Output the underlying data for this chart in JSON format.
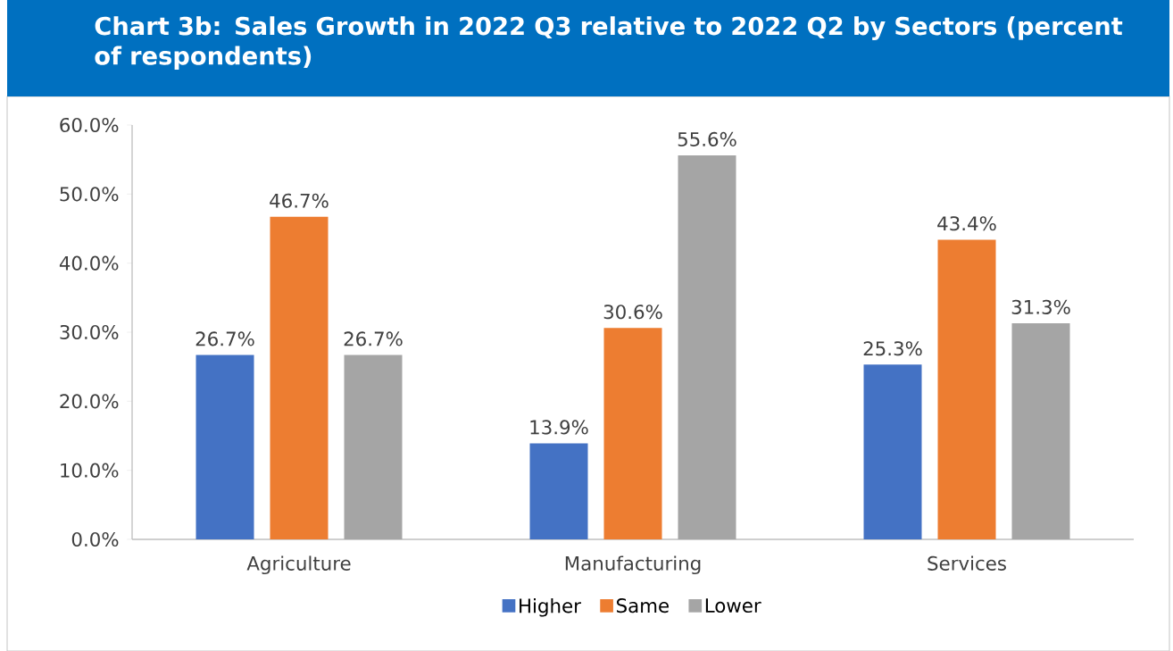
{
  "chart_data": {
    "type": "bar",
    "title": "Chart 3b: Sales Growth in 2022 Q3 relative to 2022 Q2 by Sectors (percent of respondents)",
    "categories": [
      "Agriculture",
      "Manufacturing",
      "Services"
    ],
    "series": [
      {
        "name": "Higher",
        "color": "#4472c4",
        "values": [
          26.7,
          13.9,
          25.3
        ],
        "value_labels": [
          "26.7%",
          "13.9%",
          "25.3%"
        ]
      },
      {
        "name": "Same",
        "color": "#ed7d31",
        "values": [
          46.7,
          30.6,
          43.4
        ],
        "value_labels": [
          "46.7%",
          "30.6%",
          "43.4%"
        ]
      },
      {
        "name": "Lower",
        "color": "#a5a5a5",
        "values": [
          26.7,
          55.6,
          31.3
        ],
        "value_labels": [
          "26.7%",
          "55.6%",
          "31.3%"
        ]
      }
    ],
    "ylim": [
      0,
      60
    ],
    "yticks": [
      {
        "value": 0,
        "label": "0.0%"
      },
      {
        "value": 10,
        "label": "10.0%"
      },
      {
        "value": 20,
        "label": "20.0%"
      },
      {
        "value": 30,
        "label": "30.0%"
      },
      {
        "value": 40,
        "label": "40.0%"
      },
      {
        "value": 50,
        "label": "50.0%"
      },
      {
        "value": 60,
        "label": "60.0%"
      }
    ],
    "grid": false,
    "legend": "bottom"
  }
}
